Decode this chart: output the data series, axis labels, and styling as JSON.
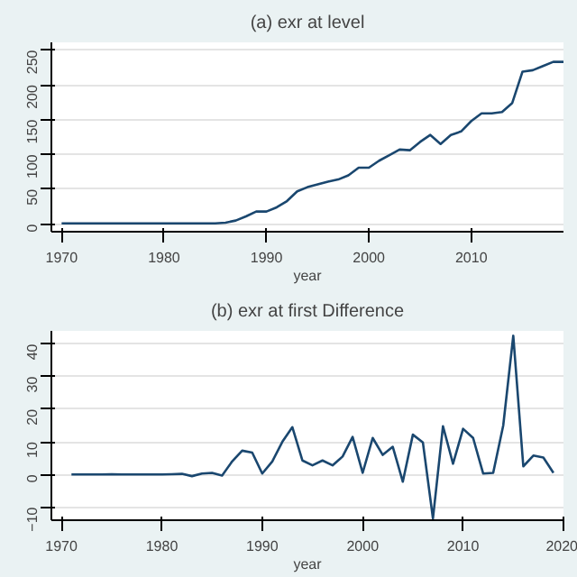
{
  "chart_data": [
    {
      "type": "line",
      "title": "(a) exr at level",
      "xlabel": "year",
      "x": [
        1970,
        1971,
        1972,
        1973,
        1974,
        1975,
        1976,
        1977,
        1978,
        1979,
        1980,
        1981,
        1982,
        1983,
        1984,
        1985,
        1986,
        1987,
        1988,
        1989,
        1990,
        1991,
        1992,
        1993,
        1994,
        1995,
        1996,
        1997,
        1998,
        1999,
        2000,
        2001,
        2002,
        2003,
        2004,
        2005,
        2006,
        2007,
        2008,
        2009,
        2010,
        2011,
        2012,
        2013,
        2014,
        2015,
        2016,
        2017,
        2018,
        2019
      ],
      "series": [
        {
          "color": "#1a476f",
          "values": [
            1,
            1,
            1,
            1,
            1,
            1,
            1,
            1,
            1,
            1,
            1,
            1,
            1,
            1,
            1,
            1,
            2,
            5,
            11,
            18,
            18,
            24,
            33,
            47,
            53,
            57,
            61,
            64,
            70,
            81,
            81,
            91,
            99,
            107,
            106,
            118,
            128,
            115,
            128,
            133,
            148,
            159,
            159,
            161,
            174,
            219,
            221,
            227,
            233,
            233
          ]
        }
      ],
      "xlim": [
        1969,
        2019
      ],
      "ylim": [
        -11,
        261
      ],
      "xticks": [
        1970,
        1980,
        1990,
        2000,
        2010
      ],
      "yticks": [
        0,
        50,
        100,
        150,
        200,
        250
      ],
      "grid": "y",
      "line_style": "solid"
    },
    {
      "type": "line",
      "title": "(b) exr at first Difference",
      "xlabel": "year",
      "x": [
        1971,
        1972,
        1973,
        1974,
        1975,
        1976,
        1977,
        1978,
        1979,
        1980,
        1981,
        1982,
        1983,
        1984,
        1985,
        1986,
        1987,
        1988,
        1989,
        1990,
        1991,
        1992,
        1993,
        1994,
        1995,
        1996,
        1997,
        1998,
        1999,
        2000,
        2001,
        2002,
        2003,
        2004,
        2005,
        2006,
        2007,
        2008,
        2009,
        2010,
        2011,
        2012,
        2013,
        2014,
        2015,
        2016,
        2017,
        2018,
        2019
      ],
      "series": [
        {
          "color": "#1a476f",
          "values": [
            0,
            0,
            0,
            0,
            0.1,
            0,
            0,
            0,
            0,
            0,
            0.1,
            0.2,
            -0.5,
            0.3,
            0.5,
            -0.3,
            4,
            7.3,
            6.7,
            0.3,
            4,
            10,
            14.5,
            4.3,
            2.8,
            4.3,
            2.8,
            5.5,
            11.5,
            0.5,
            11.2,
            6,
            8.5,
            -2.2,
            12.2,
            9.8,
            -13.5,
            14.8,
            3.3,
            14,
            11.2,
            0.3,
            0.5,
            15,
            42.5,
            2.5,
            5.8,
            5.2,
            0.5
          ]
        }
      ],
      "xlim": [
        1969,
        2020
      ],
      "ylim": [
        -14,
        44
      ],
      "xticks": [
        1970,
        1980,
        1990,
        2000,
        2010,
        2020
      ],
      "yticks": [
        -10,
        0,
        10,
        20,
        30,
        40
      ],
      "grid": "y",
      "line_style": "solid"
    }
  ]
}
